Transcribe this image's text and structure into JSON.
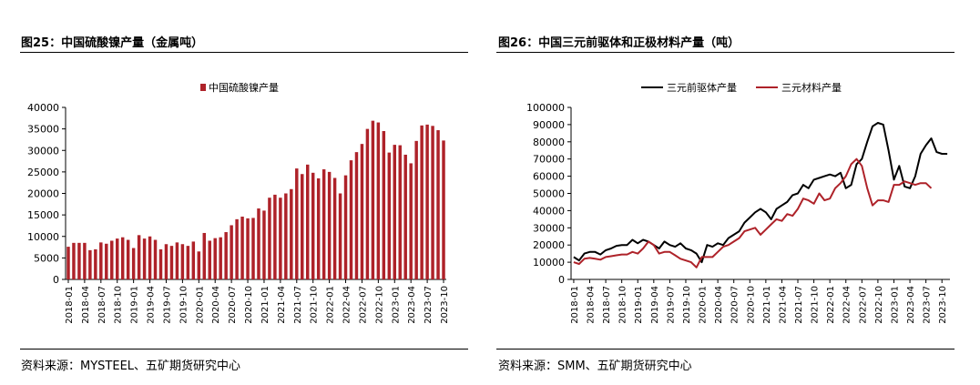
{
  "panels": {
    "left": {
      "title": "图25：中国硫酸镍产量（金属吨）",
      "source": "资料来源：MYSTEEL、五矿期货研究中心"
    },
    "right": {
      "title": "图26：中国三元前驱体和正极材料产量（吨）",
      "source": "资料来源：SMM、五矿期货研究中心"
    }
  },
  "colors": {
    "series_red": "#ae2229",
    "series_black": "#000000",
    "rule": "#000000"
  },
  "chart_data": [
    {
      "type": "bar",
      "legend_position": "top-center",
      "grid": false,
      "ylim": [
        0,
        40000
      ],
      "yticks": [
        "0",
        "5000",
        "10000",
        "15000",
        "20000",
        "25000",
        "30000",
        "35000",
        "40000"
      ],
      "x_tick_labels": [
        "2018-01",
        "2018-04",
        "2018-07",
        "2018-10",
        "2019-01",
        "2019-04",
        "2019-07",
        "2019-10",
        "2020-01",
        "2020-04",
        "2020-07",
        "2020-10",
        "2021-01",
        "2021-04",
        "2021-07",
        "2021-10",
        "2022-01",
        "2022-04",
        "2022-07",
        "2022-10",
        "2023-01",
        "2023-04",
        "2023-07",
        "2023-10"
      ],
      "series": [
        {
          "name": "中国硫酸镍产量",
          "values": [
            7600,
            8500,
            8500,
            8500,
            6800,
            7000,
            8600,
            8300,
            9000,
            9500,
            9800,
            9200,
            7300,
            10300,
            9500,
            10000,
            9200,
            7000,
            8200,
            7800,
            8600,
            8200,
            7800,
            8800,
            6500,
            10800,
            9000,
            9600,
            9800,
            11000,
            12600,
            14000,
            14600,
            14200,
            14300,
            16500,
            16000,
            19000,
            19700,
            19000,
            20000,
            21000,
            25800,
            24500,
            26700,
            24800,
            23500,
            25600,
            25000,
            23600,
            20000,
            24200,
            27700,
            29600,
            31500,
            35000,
            36900,
            36500,
            34500,
            29500,
            31300,
            31200,
            29000,
            27000,
            32200,
            35800,
            36000,
            35700,
            34700,
            32300
          ]
        }
      ]
    },
    {
      "type": "line",
      "legend_position": "top-center",
      "grid": false,
      "ylim": [
        0,
        100000
      ],
      "yticks": [
        "0",
        "10000",
        "20000",
        "30000",
        "40000",
        "50000",
        "60000",
        "70000",
        "80000",
        "90000",
        "100000"
      ],
      "x_tick_labels": [
        "2018-01",
        "2018-04",
        "2018-07",
        "2018-10",
        "2019-01",
        "2019-04",
        "2019-07",
        "2019-10",
        "2020-01",
        "2020-04",
        "2020-07",
        "2020-10",
        "2021-01",
        "2021-04",
        "2021-07",
        "2021-10",
        "2022-01",
        "2022-04",
        "2022-07",
        "2022-10",
        "2023-01",
        "2023-04",
        "2023-07",
        "2023-10"
      ],
      "series": [
        {
          "name": "三元前驱体产量",
          "values": [
            13000,
            11000,
            15000,
            16000,
            16000,
            14500,
            17000,
            18000,
            19500,
            20000,
            20000,
            23000,
            21000,
            23000,
            22000,
            20000,
            18000,
            22000,
            20000,
            19000,
            21000,
            18000,
            17000,
            15000,
            10000,
            20000,
            19000,
            21000,
            20000,
            24000,
            26000,
            28000,
            33000,
            36000,
            39000,
            41000,
            39000,
            35000,
            41000,
            43000,
            45000,
            49000,
            50000,
            55000,
            53000,
            58000,
            59000,
            60000,
            61000,
            60000,
            62000,
            53000,
            55000,
            67000,
            70000,
            80000,
            89000,
            91000,
            90000,
            75000,
            58000,
            66000,
            54000,
            53000,
            60000,
            73000,
            78000,
            82000,
            74000,
            73000,
            73000
          ],
          "color": "#000000"
        },
        {
          "name": "三元材料产量",
          "values": [
            10000,
            9000,
            12000,
            12500,
            12000,
            11500,
            13000,
            13500,
            14000,
            14500,
            14500,
            16000,
            15000,
            18000,
            22000,
            20000,
            15000,
            16000,
            16000,
            14000,
            12000,
            11000,
            10000,
            7000,
            13000,
            13000,
            13000,
            16000,
            19000,
            20000,
            22000,
            24000,
            28000,
            29000,
            30000,
            26000,
            29000,
            32000,
            35000,
            34000,
            38000,
            37000,
            41000,
            47000,
            46000,
            44000,
            50000,
            46000,
            47000,
            53000,
            56000,
            60000,
            67000,
            70000,
            66000,
            53000,
            43000,
            46000,
            46000,
            45000,
            55000,
            55000,
            57000,
            56000,
            55000,
            56000,
            56000,
            53000
          ],
          "color": "#ae2229"
        }
      ]
    }
  ]
}
